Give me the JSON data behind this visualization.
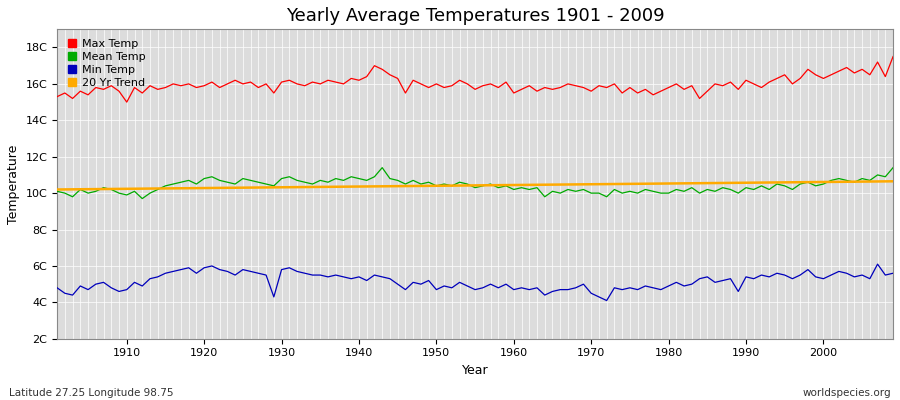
{
  "title": "Yearly Average Temperatures 1901 - 2009",
  "xlabel": "Year",
  "ylabel": "Temperature",
  "subtitle_left": "Latitude 27.25 Longitude 98.75",
  "subtitle_right": "worldspecies.org",
  "years": [
    1901,
    1902,
    1903,
    1904,
    1905,
    1906,
    1907,
    1908,
    1909,
    1910,
    1911,
    1912,
    1913,
    1914,
    1915,
    1916,
    1917,
    1918,
    1919,
    1920,
    1921,
    1922,
    1923,
    1924,
    1925,
    1926,
    1927,
    1928,
    1929,
    1930,
    1931,
    1932,
    1933,
    1934,
    1935,
    1936,
    1937,
    1938,
    1939,
    1940,
    1941,
    1942,
    1943,
    1944,
    1945,
    1946,
    1947,
    1948,
    1949,
    1950,
    1951,
    1952,
    1953,
    1954,
    1955,
    1956,
    1957,
    1958,
    1959,
    1960,
    1961,
    1962,
    1963,
    1964,
    1965,
    1966,
    1967,
    1968,
    1969,
    1970,
    1971,
    1972,
    1973,
    1974,
    1975,
    1976,
    1977,
    1978,
    1979,
    1980,
    1981,
    1982,
    1983,
    1984,
    1985,
    1986,
    1987,
    1988,
    1989,
    1990,
    1991,
    1992,
    1993,
    1994,
    1995,
    1996,
    1997,
    1998,
    1999,
    2000,
    2001,
    2002,
    2003,
    2004,
    2005,
    2006,
    2007,
    2008,
    2009
  ],
  "max_temp": [
    15.3,
    15.5,
    15.2,
    15.6,
    15.4,
    15.8,
    15.7,
    15.9,
    15.6,
    15.0,
    15.8,
    15.5,
    15.9,
    15.7,
    15.8,
    16.0,
    15.9,
    16.0,
    15.8,
    15.9,
    16.1,
    15.8,
    16.0,
    16.2,
    16.0,
    16.1,
    15.8,
    16.0,
    15.5,
    16.1,
    16.2,
    16.0,
    15.9,
    16.1,
    16.0,
    16.2,
    16.1,
    16.0,
    16.3,
    16.2,
    16.4,
    17.0,
    16.8,
    16.5,
    16.3,
    15.5,
    16.2,
    16.0,
    15.8,
    16.0,
    15.8,
    15.9,
    16.2,
    16.0,
    15.7,
    15.9,
    16.0,
    15.8,
    16.1,
    15.5,
    15.7,
    15.9,
    15.6,
    15.8,
    15.7,
    15.8,
    16.0,
    15.9,
    15.8,
    15.6,
    15.9,
    15.8,
    16.0,
    15.5,
    15.8,
    15.5,
    15.7,
    15.4,
    15.6,
    15.8,
    16.0,
    15.7,
    15.9,
    15.2,
    15.6,
    16.0,
    15.9,
    16.1,
    15.7,
    16.2,
    16.0,
    15.8,
    16.1,
    16.3,
    16.5,
    16.0,
    16.3,
    16.8,
    16.5,
    16.3,
    16.5,
    16.7,
    16.9,
    16.6,
    16.8,
    16.5,
    17.2,
    16.4,
    17.5
  ],
  "mean_temp": [
    10.1,
    10.0,
    9.8,
    10.2,
    10.0,
    10.1,
    10.3,
    10.2,
    10.0,
    9.9,
    10.1,
    9.7,
    10.0,
    10.2,
    10.4,
    10.5,
    10.6,
    10.7,
    10.5,
    10.8,
    10.9,
    10.7,
    10.6,
    10.5,
    10.8,
    10.7,
    10.6,
    10.5,
    10.4,
    10.8,
    10.9,
    10.7,
    10.6,
    10.5,
    10.7,
    10.6,
    10.8,
    10.7,
    10.9,
    10.8,
    10.7,
    10.9,
    11.4,
    10.8,
    10.7,
    10.5,
    10.7,
    10.5,
    10.6,
    10.4,
    10.5,
    10.4,
    10.6,
    10.5,
    10.3,
    10.4,
    10.5,
    10.3,
    10.4,
    10.2,
    10.3,
    10.2,
    10.3,
    9.8,
    10.1,
    10.0,
    10.2,
    10.1,
    10.2,
    10.0,
    10.0,
    9.8,
    10.2,
    10.0,
    10.1,
    10.0,
    10.2,
    10.1,
    10.0,
    10.0,
    10.2,
    10.1,
    10.3,
    10.0,
    10.2,
    10.1,
    10.3,
    10.2,
    10.0,
    10.3,
    10.2,
    10.4,
    10.2,
    10.5,
    10.4,
    10.2,
    10.5,
    10.6,
    10.4,
    10.5,
    10.7,
    10.8,
    10.7,
    10.6,
    10.8,
    10.7,
    11.0,
    10.9,
    11.4
  ],
  "min_temp": [
    4.8,
    4.5,
    4.4,
    4.9,
    4.7,
    5.0,
    5.1,
    4.8,
    4.6,
    4.7,
    5.1,
    4.9,
    5.3,
    5.4,
    5.6,
    5.7,
    5.8,
    5.9,
    5.6,
    5.9,
    6.0,
    5.8,
    5.7,
    5.5,
    5.8,
    5.7,
    5.6,
    5.5,
    4.3,
    5.8,
    5.9,
    5.7,
    5.6,
    5.5,
    5.5,
    5.4,
    5.5,
    5.4,
    5.3,
    5.4,
    5.2,
    5.5,
    5.4,
    5.3,
    5.0,
    4.7,
    5.1,
    5.0,
    5.2,
    4.7,
    4.9,
    4.8,
    5.1,
    4.9,
    4.7,
    4.8,
    5.0,
    4.8,
    5.0,
    4.7,
    4.8,
    4.7,
    4.8,
    4.4,
    4.6,
    4.7,
    4.7,
    4.8,
    5.0,
    4.5,
    4.3,
    4.1,
    4.8,
    4.7,
    4.8,
    4.7,
    4.9,
    4.8,
    4.7,
    4.9,
    5.1,
    4.9,
    5.0,
    5.3,
    5.4,
    5.1,
    5.2,
    5.3,
    4.6,
    5.4,
    5.3,
    5.5,
    5.4,
    5.6,
    5.5,
    5.3,
    5.5,
    5.8,
    5.4,
    5.3,
    5.5,
    5.7,
    5.6,
    5.4,
    5.5,
    5.3,
    6.1,
    5.5,
    5.6
  ],
  "max_color": "#ff0000",
  "mean_color": "#00aa00",
  "min_color": "#0000bb",
  "trend_color": "#ffaa00",
  "bg_color": "#ffffff",
  "plot_bg_color": "#dcdcdc",
  "grid_color": "#ffffff",
  "ylim": [
    2,
    19
  ],
  "yticks": [
    2,
    4,
    6,
    8,
    10,
    12,
    14,
    16,
    18
  ],
  "ytick_labels": [
    "2C",
    "4C",
    "6C",
    "8C",
    "10C",
    "12C",
    "14C",
    "16C",
    "18C"
  ],
  "xticks": [
    1910,
    1920,
    1930,
    1940,
    1950,
    1960,
    1970,
    1980,
    1990,
    2000
  ],
  "title_fontsize": 13,
  "axis_fontsize": 9,
  "tick_fontsize": 8,
  "legend_fontsize": 8,
  "line_width": 0.9
}
